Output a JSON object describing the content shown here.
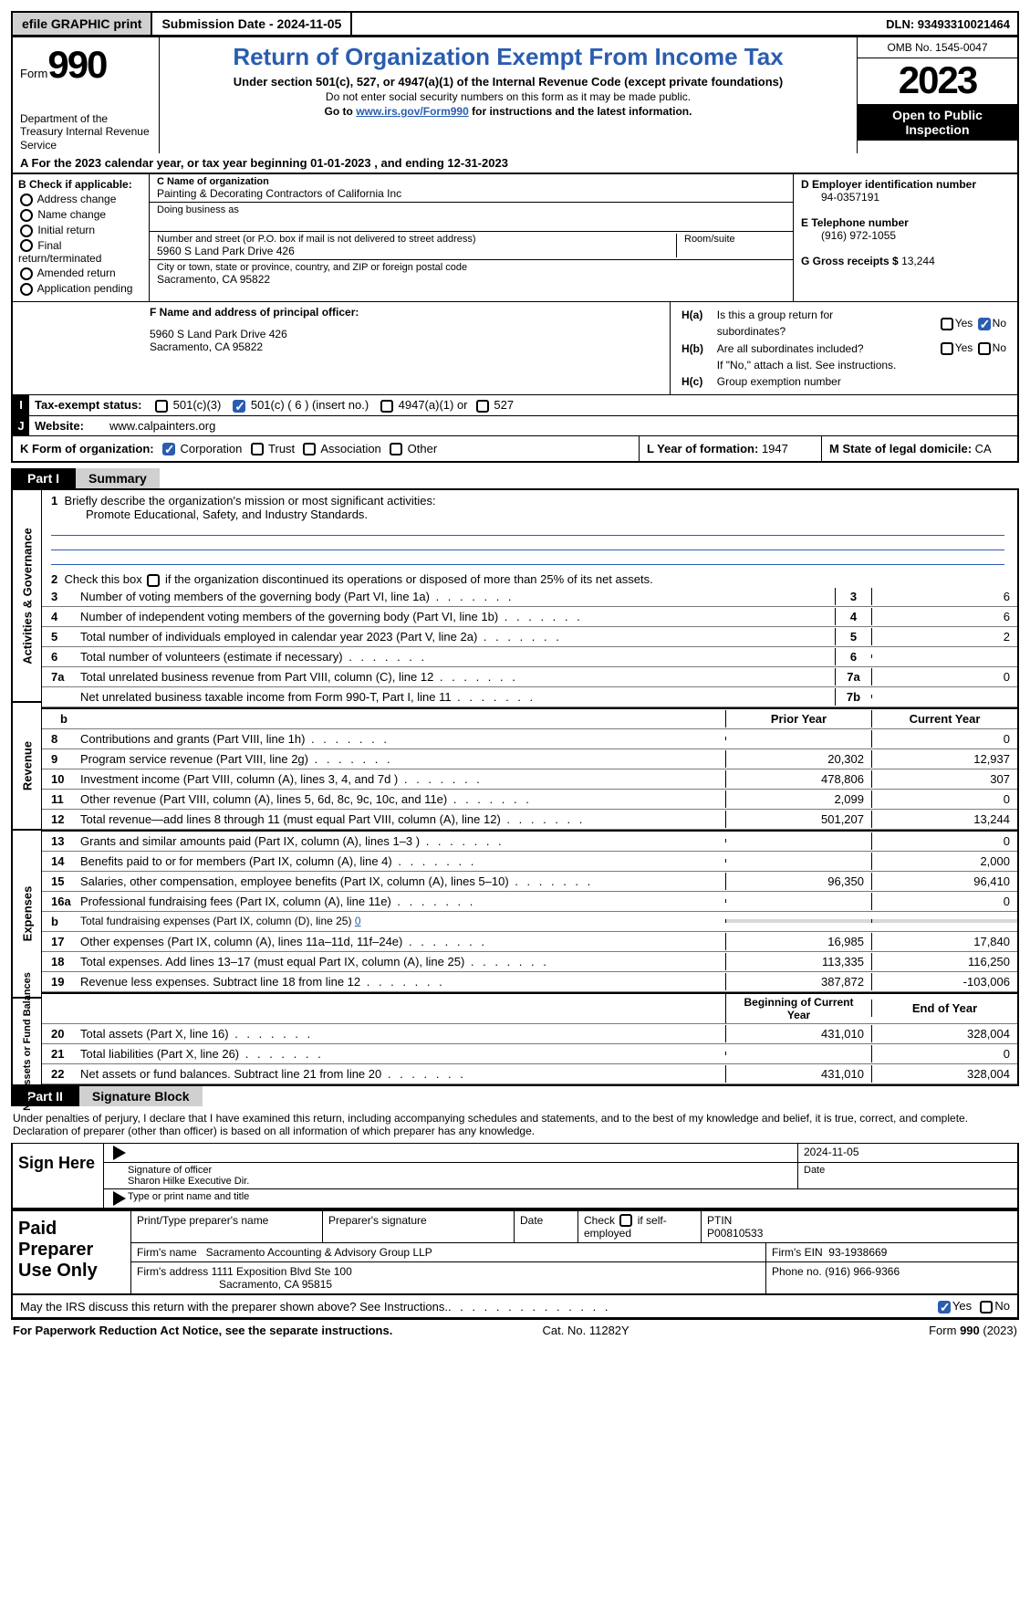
{
  "colors": {
    "link": "#2a5db0",
    "black": "#000000",
    "grey_fill": "#d8d8d8",
    "btn_grey": "#d0d0d0"
  },
  "topbar": {
    "efile": "efile GRAPHIC print",
    "submission": "Submission Date - 2024-11-05",
    "dln": "DLN: 93493310021464"
  },
  "header": {
    "form_word": "Form",
    "form_num": "990",
    "title": "Return of Organization Exempt From Income Tax",
    "sub1": "Under section 501(c), 527, or 4947(a)(1) of the Internal Revenue Code (except private foundations)",
    "sub2": "Do not enter social security numbers on this form as it may be made public.",
    "sub3_pre": "Go to ",
    "sub3_link": "www.irs.gov/Form990",
    "sub3_post": " for instructions and the latest information.",
    "dept": "Department of the Treasury\nInternal Revenue Service",
    "omb": "OMB No. 1545-0047",
    "year": "2023",
    "open": "Open to Public Inspection"
  },
  "line_a": {
    "pre": "A For the 2023 calendar year, or tax year beginning ",
    "begin": "01-01-2023",
    "mid": "  , and ending ",
    "end": "12-31-2023"
  },
  "col_b": {
    "label": "B Check if applicable:",
    "items": [
      "Address change",
      "Name change",
      "Initial return",
      "Final return/terminated",
      "Amended return",
      "Application pending"
    ]
  },
  "col_c": {
    "name_lbl": "C Name of organization",
    "name": "Painting & Decorating Contractors of California Inc",
    "dba_lbl": "Doing business as",
    "dba": "",
    "addr_lbl": "Number and street (or P.O. box if mail is not delivered to street address)",
    "addr": "5960 S Land Park Drive 426",
    "room_lbl": "Room/suite",
    "city_lbl": "City or town, state or province, country, and ZIP or foreign postal code",
    "city": "Sacramento, CA  95822"
  },
  "col_d": {
    "ein_lbl": "D Employer identification number",
    "ein": "94-0357191",
    "tel_lbl": "E Telephone number",
    "tel": "(916) 972-1055",
    "gross_lbl": "G Gross receipts $",
    "gross": "13,244"
  },
  "sec_f": {
    "label": "F  Name and address of principal officer:",
    "line1": "5960 S Land Park Drive 426",
    "line2": "Sacramento, CA  95822"
  },
  "sec_h": {
    "ha_lbl": "H(a)",
    "ha_txt1": "Is this a group return for",
    "ha_txt2": "subordinates?",
    "hb_lbl": "H(b)",
    "hb_txt": "Are all subordinates included?",
    "hb_note": "If \"No,\" attach a list. See instructions.",
    "hc_lbl": "H(c)",
    "hc_txt": "Group exemption number",
    "yes": "Yes",
    "no": "No"
  },
  "row_i": {
    "tag": "I",
    "label": "Tax-exempt status:",
    "o1": "501(c)(3)",
    "o2": "501(c) ( 6 ) (insert no.)",
    "o3": "4947(a)(1) or",
    "o4": "527"
  },
  "row_j": {
    "tag": "J",
    "label": "Website:",
    "val": "www.calpainters.org"
  },
  "row_k": {
    "k_lbl": "K Form of organization:",
    "o1": "Corporation",
    "o2": "Trust",
    "o3": "Association",
    "o4": "Other",
    "l_lbl": "L Year of formation:",
    "l_val": "1947",
    "m_lbl": "M State of legal domicile:",
    "m_val": "CA"
  },
  "part1": {
    "tag": "Part I",
    "name": "Summary"
  },
  "mission": {
    "q1": "Briefly describe the organization's mission or most significant activities:",
    "a1": "Promote Educational, Safety, and Industry Standards.",
    "q2_pre": "Check this box ",
    "q2_post": " if the organization discontinued its operations or disposed of more than 25% of its net assets."
  },
  "gov_lines": [
    {
      "n": "3",
      "t": "Number of voting members of the governing body (Part VI, line 1a)",
      "col": "3",
      "v": "6"
    },
    {
      "n": "4",
      "t": "Number of independent voting members of the governing body (Part VI, line 1b)",
      "col": "4",
      "v": "6"
    },
    {
      "n": "5",
      "t": "Total number of individuals employed in calendar year 2023 (Part V, line 2a)",
      "col": "5",
      "v": "2"
    },
    {
      "n": "6",
      "t": "Total number of volunteers (estimate if necessary)",
      "col": "6",
      "v": ""
    },
    {
      "n": "7a",
      "t": "Total unrelated business revenue from Part VIII, column (C), line 12",
      "col": "7a",
      "v": "0"
    },
    {
      "n": "",
      "t": "Net unrelated business taxable income from Form 990-T, Part I, line 11",
      "col": "7b",
      "v": ""
    }
  ],
  "rev_hdr": {
    "n": "b",
    "p": "Prior Year",
    "c": "Current Year"
  },
  "rev_lines": [
    {
      "n": "8",
      "t": "Contributions and grants (Part VIII, line 1h)",
      "p": "",
      "c": "0"
    },
    {
      "n": "9",
      "t": "Program service revenue (Part VIII, line 2g)",
      "p": "20,302",
      "c": "12,937"
    },
    {
      "n": "10",
      "t": "Investment income (Part VIII, column (A), lines 3, 4, and 7d )",
      "p": "478,806",
      "c": "307"
    },
    {
      "n": "11",
      "t": "Other revenue (Part VIII, column (A), lines 5, 6d, 8c, 9c, 10c, and 11e)",
      "p": "2,099",
      "c": "0"
    },
    {
      "n": "12",
      "t": "Total revenue—add lines 8 through 11 (must equal Part VIII, column (A), line 12)",
      "p": "501,207",
      "c": "13,244"
    }
  ],
  "exp_lines": [
    {
      "n": "13",
      "t": "Grants and similar amounts paid (Part IX, column (A), lines 1–3 )",
      "p": "",
      "c": "0"
    },
    {
      "n": "14",
      "t": "Benefits paid to or for members (Part IX, column (A), line 4)",
      "p": "",
      "c": "2,000"
    },
    {
      "n": "15",
      "t": "Salaries, other compensation, employee benefits (Part IX, column (A), lines 5–10)",
      "p": "96,350",
      "c": "96,410"
    },
    {
      "n": "16a",
      "t": "Professional fundraising fees (Part IX, column (A), line 11e)",
      "p": "",
      "c": "0"
    },
    {
      "n": "b",
      "t": "Total fundraising expenses (Part IX, column (D), line 25)",
      "sub": true,
      "inline": "0",
      "shade": true
    },
    {
      "n": "17",
      "t": "Other expenses (Part IX, column (A), lines 11a–11d, 11f–24e)",
      "p": "16,985",
      "c": "17,840"
    },
    {
      "n": "18",
      "t": "Total expenses. Add lines 13–17 (must equal Part IX, column (A), line 25)",
      "p": "113,335",
      "c": "116,250"
    },
    {
      "n": "19",
      "t": "Revenue less expenses. Subtract line 18 from line 12",
      "p": "387,872",
      "c": "-103,006"
    }
  ],
  "net_hdr": {
    "p": "Beginning of Current Year",
    "c": "End of Year"
  },
  "net_lines": [
    {
      "n": "20",
      "t": "Total assets (Part X, line 16)",
      "p": "431,010",
      "c": "328,004"
    },
    {
      "n": "21",
      "t": "Total liabilities (Part X, line 26)",
      "p": "",
      "c": "0"
    },
    {
      "n": "22",
      "t": "Net assets or fund balances. Subtract line 21 from line 20",
      "p": "431,010",
      "c": "328,004"
    }
  ],
  "vtabs": {
    "gov": "Activities & Governance",
    "rev": "Revenue",
    "exp": "Expenses",
    "net": "Net Assets or Fund Balances"
  },
  "part2": {
    "tag": "Part II",
    "name": "Signature Block"
  },
  "perjury": "Under penalties of perjury, I declare that I have examined this return, including accompanying schedules and statements, and to the best of my knowledge and belief, it is true, correct, and complete. Declaration of preparer (other than officer) is based on all information of which preparer has any knowledge.",
  "sign": {
    "label": "Sign Here",
    "sig_lbl": "Signature of officer",
    "date_lbl": "Date",
    "date": "2024-11-05",
    "name_lbl": "Type or print name and title",
    "name": "Sharon Hilke  Executive Dir."
  },
  "prep": {
    "label": "Paid Preparer Use Only",
    "h_name": "Print/Type preparer's name",
    "h_sig": "Preparer's signature",
    "h_date": "Date",
    "h_self": "Check         if self-employed",
    "h_ptin": "PTIN",
    "ptin": "P00810533",
    "firm_lbl": "Firm's name",
    "firm": "Sacramento Accounting & Advisory Group LLP",
    "ein_lbl": "Firm's EIN",
    "ein": "93-1938669",
    "addr_lbl": "Firm's address",
    "addr1": "1111 Exposition Blvd Ste 100",
    "addr2": "Sacramento, CA  95815",
    "phone_lbl": "Phone no.",
    "phone": "(916) 966-9366"
  },
  "bottom_q": {
    "text": "May the IRS discuss this return with the preparer shown above? See Instructions.",
    "yes": "Yes",
    "no": "No"
  },
  "footer": {
    "left": "For Paperwork Reduction Act Notice, see the separate instructions.",
    "mid": "Cat. No. 11282Y",
    "right_pre": "Form ",
    "right_b": "990",
    "right_post": " (2023)"
  }
}
